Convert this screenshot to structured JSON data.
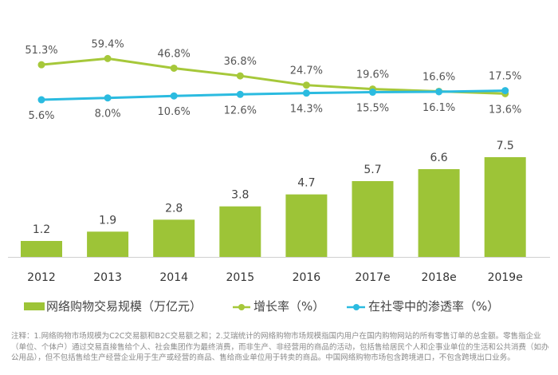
{
  "chart_data": {
    "type": "bar+line",
    "categories": [
      "2012",
      "2013",
      "2014",
      "2015",
      "2016",
      "2017e",
      "2018e",
      "2019e"
    ],
    "series": [
      {
        "name": "网络购物交易规模（万亿元）",
        "type": "bar",
        "values": [
          1.2,
          1.9,
          2.8,
          3.8,
          4.7,
          5.7,
          6.6,
          7.5
        ],
        "labels": [
          "1.2",
          "1.9",
          "2.8",
          "3.8",
          "4.7",
          "5.7",
          "6.6",
          "7.5"
        ],
        "color": "#9dc437"
      },
      {
        "name": "增长率（%）",
        "type": "line",
        "values": [
          51.3,
          59.4,
          46.8,
          36.8,
          24.7,
          19.6,
          16.6,
          13.6
        ],
        "labels": [
          "51.3%",
          "59.4%",
          "46.8%",
          "36.8%",
          "24.7%",
          "19.6%",
          "16.6%",
          "13.6%"
        ],
        "color": "#a6c83a"
      },
      {
        "name": "在社零中的渗透率（%）",
        "type": "line",
        "values": [
          5.6,
          8.0,
          10.6,
          12.6,
          14.3,
          15.5,
          16.1,
          17.5
        ],
        "labels": [
          "5.6%",
          "8.0%",
          "10.6%",
          "12.6%",
          "14.3%",
          "15.5%",
          "16.1%",
          "17.5%"
        ],
        "color": "#2bbbe0"
      }
    ],
    "legend_position": "bottom",
    "grid": false
  },
  "note": "注释：1.网络购物市场规模为C2C交易额和B2C交易额之和；2.艾瑞统计的网络购物市场规模指国内用户在国内购物网站的所有零售订单的总金额。零售指企业（单位、个体户）通过交易直接售给个人、社会集团作为最终消费，而非生产、非经营用的商品的活动，包括售给居民个人和企事业单位的生活和公共消费（如办公用品），但不包括售给生产经营企业用于生产或经营的商品、售给商业单位用于转卖的商品。中国网络购物市场包含跨境进口，不包含跨境出口业务。"
}
